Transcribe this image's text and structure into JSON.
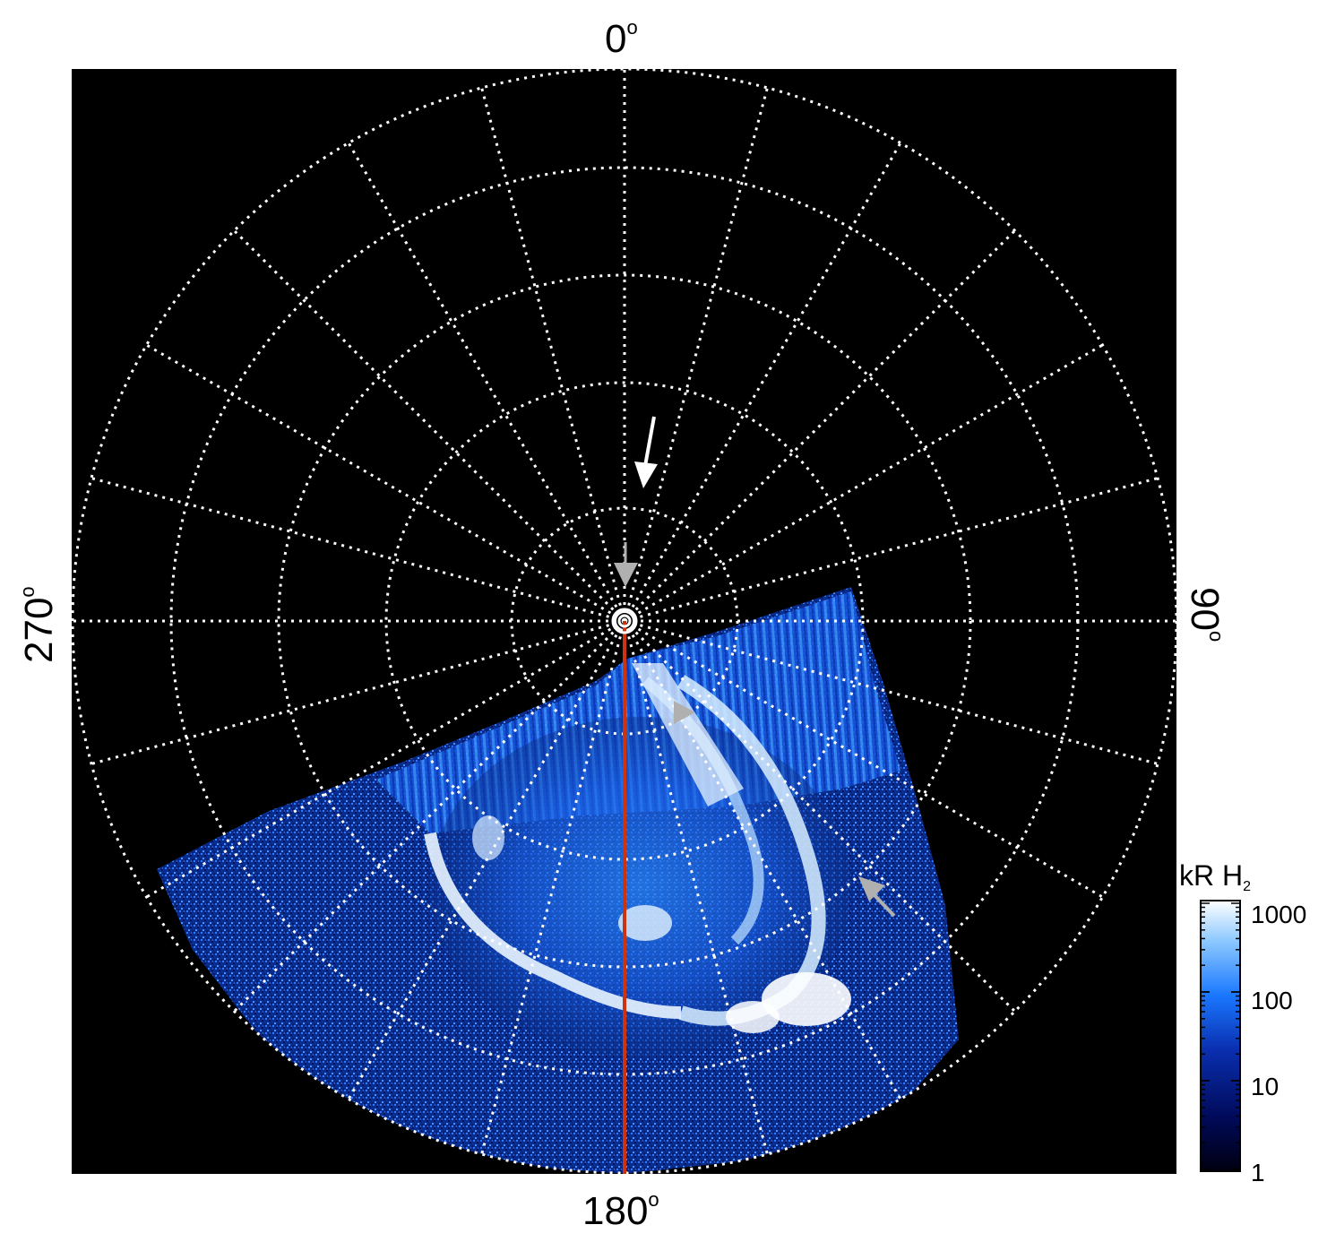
{
  "labels": {
    "top": "0",
    "bottom": "180",
    "left": "270",
    "right": "90",
    "degree_symbol": "o"
  },
  "colorbar": {
    "title_main": "kR H",
    "title_sub": "2",
    "ticks": [
      "1000",
      "100",
      "10",
      "1"
    ],
    "colors": [
      "#000010",
      "#000a5a",
      "#0a2fb0",
      "#1a78ff",
      "#8cc8ff",
      "#ffffff"
    ]
  },
  "colors": {
    "background": "#000000",
    "grid": "#ffffff",
    "meridian": "#cc3311",
    "arrow_white": "#ffffff",
    "arrow_gray": "#b0b0b0",
    "aurora_bright": "#e8f4ff",
    "aurora_mid": "#2a8cff",
    "aurora_dim": "#0a2f8a"
  }
}
